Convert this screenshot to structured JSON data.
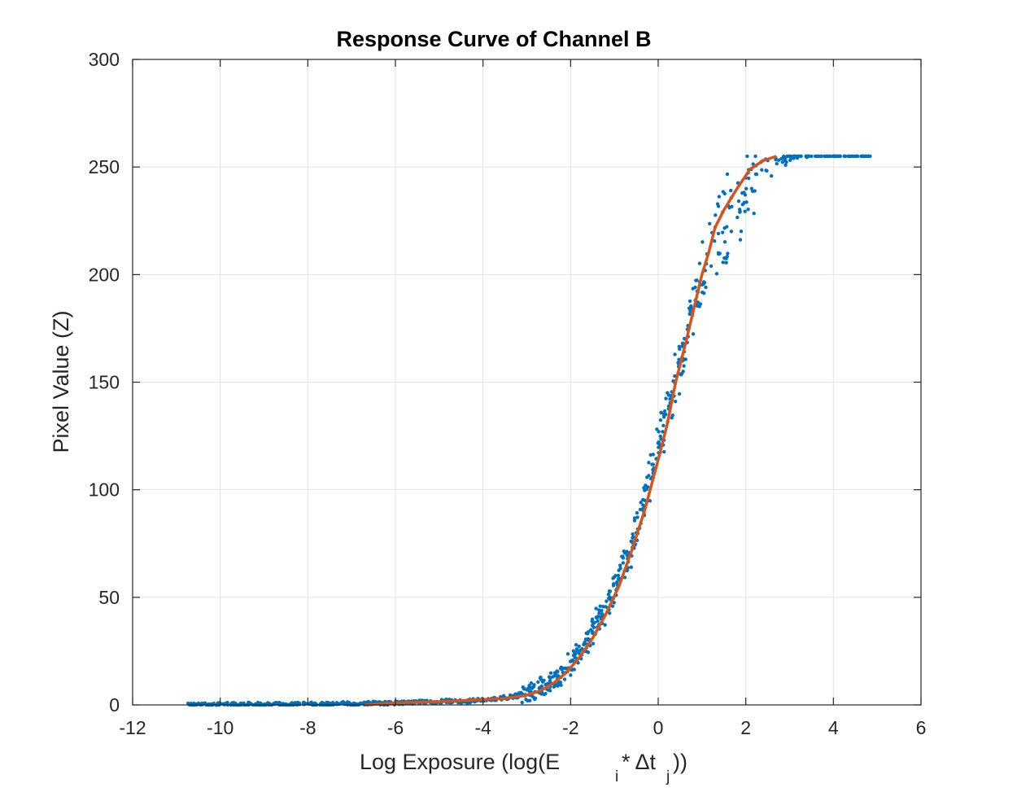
{
  "chart_data": {
    "type": "scatter",
    "title": "Response Curve of Channel B",
    "ylabel": "Pixel Value (Z)",
    "xlabel_parts": {
      "main": "Log Exposure (log(E",
      "sub_i": "i",
      "mid": "* Δt",
      "sub_j": "j",
      "end": "))"
    },
    "xlim": [
      -12,
      6
    ],
    "ylim": [
      0,
      300
    ],
    "x_ticks": [
      -12,
      -10,
      -8,
      -6,
      -4,
      -2,
      0,
      2,
      4,
      6
    ],
    "x_tick_labels": [
      "-12",
      "-10",
      "-8",
      "-6",
      "-4",
      "-2",
      "0",
      "2",
      "4",
      "6"
    ],
    "y_ticks": [
      0,
      50,
      100,
      150,
      200,
      250,
      300
    ],
    "y_tick_labels": [
      "0",
      "50",
      "100",
      "150",
      "200",
      "250",
      "300"
    ],
    "grid": true,
    "series": [
      {
        "kind": "scatter",
        "color": "#0072BD",
        "points": [
          [
            -10.7,
            0
          ],
          [
            -10.5,
            0.5
          ],
          [
            -10.2,
            0
          ],
          [
            -9.9,
            0.5
          ],
          [
            -9.6,
            0
          ],
          [
            -9.3,
            0.5
          ],
          [
            -9.0,
            0
          ],
          [
            -8.7,
            0.5
          ],
          [
            -8.4,
            0
          ],
          [
            -8.1,
            1
          ],
          [
            -7.8,
            0
          ],
          [
            -7.5,
            0.5
          ],
          [
            -7.2,
            1
          ],
          [
            -6.9,
            0
          ],
          [
            -6.6,
            1
          ],
          [
            -6.3,
            0.5
          ],
          [
            -6.0,
            1
          ],
          [
            -5.7,
            1
          ],
          [
            -5.4,
            1.5
          ],
          [
            -5.1,
            1
          ],
          [
            -4.8,
            2
          ],
          [
            -4.5,
            1.5
          ],
          [
            -4.2,
            2
          ],
          [
            -3.9,
            2.5
          ],
          [
            -3.6,
            3
          ],
          [
            -3.3,
            4
          ],
          [
            -3.1,
            5
          ],
          [
            -2.9,
            6
          ],
          [
            -2.7,
            8
          ],
          [
            -2.5,
            10
          ],
          [
            -2.3,
            13
          ],
          [
            -2.1,
            17
          ],
          [
            -1.9,
            22
          ],
          [
            -1.7,
            28
          ],
          [
            -1.5,
            34
          ],
          [
            -1.3,
            41
          ],
          [
            -1.1,
            49
          ],
          [
            -0.9,
            58
          ],
          [
            -0.7,
            68
          ],
          [
            -0.5,
            80
          ],
          [
            -0.3,
            95
          ],
          [
            -0.1,
            110
          ],
          [
            0.1,
            127
          ],
          [
            0.3,
            143
          ],
          [
            0.5,
            160
          ],
          [
            0.7,
            175
          ],
          [
            0.9,
            192
          ],
          [
            1.1,
            205
          ],
          [
            1.3,
            222
          ],
          [
            1.6,
            232
          ],
          [
            2.0,
            245
          ],
          [
            2.5,
            253
          ],
          [
            3.0,
            255
          ],
          [
            3.5,
            255
          ],
          [
            4.0,
            255
          ],
          [
            4.5,
            255
          ],
          [
            4.8,
            255
          ]
        ]
      },
      {
        "kind": "line",
        "color": "#D95319",
        "points": [
          [
            -6.7,
            0
          ],
          [
            -6.0,
            1
          ],
          [
            -5.0,
            1.5
          ],
          [
            -4.0,
            2.5
          ],
          [
            -3.5,
            3
          ],
          [
            -3.0,
            4.5
          ],
          [
            -2.7,
            6.5
          ],
          [
            -2.4,
            10
          ],
          [
            -2.1,
            15
          ],
          [
            -1.8,
            22
          ],
          [
            -1.5,
            31
          ],
          [
            -1.2,
            42
          ],
          [
            -0.9,
            55
          ],
          [
            -0.6,
            72
          ],
          [
            -0.3,
            91
          ],
          [
            0.0,
            114
          ],
          [
            0.2,
            130
          ],
          [
            0.4,
            150
          ],
          [
            0.6,
            166
          ],
          [
            0.8,
            183
          ],
          [
            1.0,
            200
          ],
          [
            1.15,
            210
          ],
          [
            1.3,
            222
          ],
          [
            1.5,
            230
          ],
          [
            1.8,
            240
          ],
          [
            2.1,
            249
          ],
          [
            2.4,
            253
          ],
          [
            2.7,
            255
          ]
        ]
      }
    ]
  }
}
